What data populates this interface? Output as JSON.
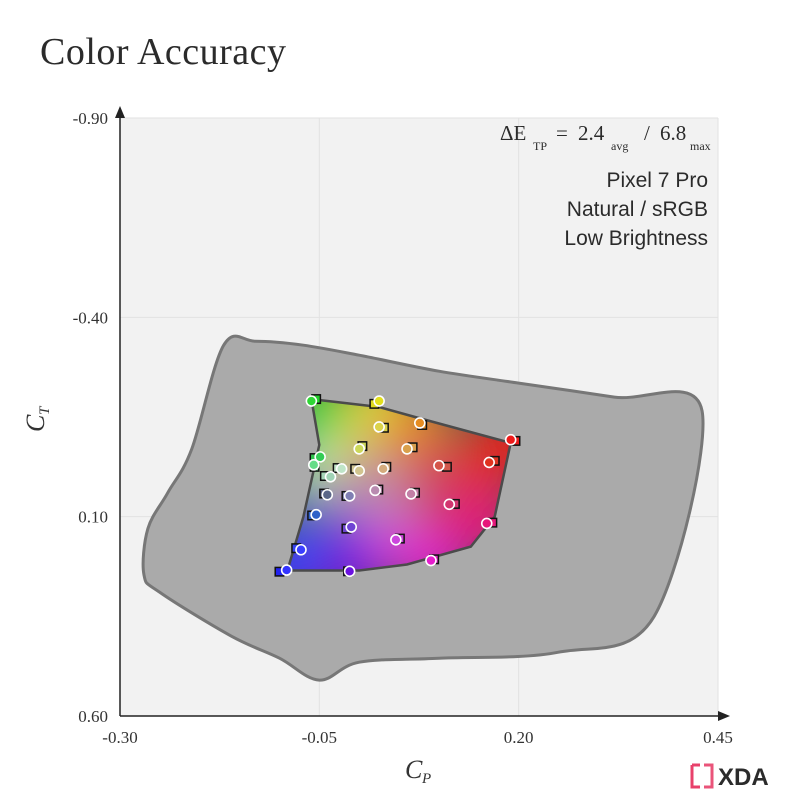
{
  "title": "Color Accuracy",
  "metric": {
    "symbol": "ΔE",
    "symbol_sub": "TP",
    "avg_value": "2.4",
    "avg_sub": "avg",
    "max_value": "6.8",
    "max_sub": "max",
    "line": "= 2.4 / 6.8"
  },
  "info": {
    "device": "Pixel 7 Pro",
    "mode": "Natural / sRGB",
    "brightness": "Low Brightness"
  },
  "logo_text": "XDA",
  "colors": {
    "plot_bg": "#f2f2f2",
    "outer_fill": "#aaaaaa",
    "outer_stroke": "#777777",
    "inner_stroke": "#555555",
    "grid": "#e2e2e2",
    "logo_accent": "#e8416b",
    "logo_text": "#2b2b2b"
  },
  "chart_data": {
    "type": "scatter",
    "title": "Color Accuracy",
    "xlabel": "C",
    "xlabel_sub": "P",
    "ylabel": "C",
    "ylabel_sub": "T",
    "xlim": [
      -0.3,
      0.45
    ],
    "ylim": [
      -0.9,
      0.6
    ],
    "y_inverted": true,
    "x_ticks": [
      -0.3,
      -0.05,
      0.2,
      0.45
    ],
    "x_tick_labels": [
      "-0.30",
      "-0.05",
      "0.20",
      "0.45"
    ],
    "y_ticks": [
      -0.9,
      -0.4,
      0.1,
      0.6
    ],
    "y_tick_labels": [
      "-0.90",
      "-0.40",
      "0.10",
      "0.60"
    ],
    "grid": true,
    "reference_gamut": [
      [
        -0.17,
        -0.33
      ],
      [
        -0.13,
        -0.34
      ],
      [
        -0.07,
        -0.33
      ],
      [
        0.0,
        -0.305
      ],
      [
        0.1,
        -0.265
      ],
      [
        0.2,
        -0.235
      ],
      [
        0.32,
        -0.2
      ],
      [
        0.43,
        -0.165
      ],
      [
        0.37,
        0.35
      ],
      [
        0.25,
        0.44
      ],
      [
        0.1,
        0.455
      ],
      [
        0.0,
        0.465
      ],
      [
        -0.05,
        0.51
      ],
      [
        -0.1,
        0.455
      ],
      [
        -0.16,
        0.4
      ],
      [
        -0.25,
        0.29
      ],
      [
        -0.27,
        0.245
      ],
      [
        -0.265,
        0.13
      ],
      [
        -0.24,
        0.04
      ],
      [
        -0.21,
        -0.07
      ]
    ],
    "measured_gamut": [
      [
        -0.06,
        -0.195
      ],
      [
        0.025,
        -0.175
      ],
      [
        0.07,
        -0.15
      ],
      [
        0.19,
        -0.085
      ],
      [
        0.17,
        0.1
      ],
      [
        0.14,
        0.175
      ],
      [
        0.06,
        0.22
      ],
      [
        0.0,
        0.235
      ],
      [
        -0.09,
        0.235
      ],
      [
        -0.07,
        0.1
      ],
      [
        -0.05,
        -0.08
      ]
    ],
    "series": [
      {
        "name": "target",
        "points": [
          [
            -0.091,
            0.234,
            "#3333ff"
          ],
          [
            -0.073,
            0.183,
            "#3b3fff"
          ],
          [
            -0.054,
            0.095,
            "#2f62c8"
          ],
          [
            -0.049,
            -0.05,
            "#33cc55"
          ],
          [
            -0.06,
            -0.19,
            "#2fd635"
          ],
          [
            -0.057,
            -0.03,
            "#66dd88"
          ],
          [
            -0.04,
            0.045,
            "#5a6688"
          ],
          [
            -0.036,
            0.0,
            "#a0d3b5"
          ],
          [
            -0.022,
            -0.02,
            "#bfe5c8"
          ],
          [
            -0.012,
            0.048,
            "#7f7fb3"
          ],
          [
            -0.01,
            0.126,
            "#6f44d4"
          ],
          [
            -0.012,
            0.237,
            "#6b11e0"
          ],
          [
            0.0,
            -0.015,
            "#d1c58f"
          ],
          [
            0.0,
            -0.07,
            "#ccd85a"
          ],
          [
            0.025,
            -0.19,
            "#e2df1c"
          ],
          [
            0.025,
            -0.125,
            "#dbd24a"
          ],
          [
            0.03,
            -0.02,
            "#d4ab7d"
          ],
          [
            0.02,
            0.034,
            "#b98bb0"
          ],
          [
            0.046,
            0.158,
            "#cc44dd"
          ],
          [
            0.06,
            -0.07,
            "#d9a04c"
          ],
          [
            0.065,
            0.043,
            "#c27fa6"
          ],
          [
            0.076,
            -0.135,
            "#e68c21"
          ],
          [
            0.09,
            0.21,
            "#e51ccc"
          ],
          [
            0.1,
            -0.028,
            "#d4564a"
          ],
          [
            0.113,
            0.069,
            "#d2356f"
          ],
          [
            0.163,
            -0.036,
            "#e0331f"
          ],
          [
            0.19,
            -0.093,
            "#ee1a1a"
          ],
          [
            0.16,
            0.117,
            "#e7167a"
          ]
        ]
      },
      {
        "name": "measured",
        "points": [
          [
            -0.1,
            0.238,
            "#2222ee"
          ],
          [
            -0.079,
            0.179,
            "#3542f2"
          ],
          [
            -0.059,
            0.097,
            "#2f61c8"
          ],
          [
            -0.056,
            -0.047,
            "#2fc44d"
          ],
          [
            -0.054,
            -0.195,
            "#22cc2a"
          ],
          [
            -0.056,
            -0.025,
            "#5bd07f"
          ],
          [
            -0.044,
            0.042,
            "#5c6489"
          ],
          [
            -0.043,
            -0.002,
            "#a5d4b7"
          ],
          [
            -0.027,
            -0.022,
            "#c0e2c6"
          ],
          [
            -0.016,
            0.048,
            "#8080b0"
          ],
          [
            -0.016,
            0.13,
            "#6d46cc"
          ],
          [
            -0.014,
            0.237,
            "#6a16d6"
          ],
          [
            -0.005,
            -0.02,
            "#d0c695"
          ],
          [
            0.004,
            -0.077,
            "#c9d55c"
          ],
          [
            0.019,
            -0.183,
            "#ddd81f"
          ],
          [
            0.031,
            -0.123,
            "#d8cf48"
          ],
          [
            0.034,
            -0.025,
            "#d3ac7e"
          ],
          [
            0.024,
            0.032,
            "#bb8cb1"
          ],
          [
            0.051,
            0.155,
            "#c944d9"
          ],
          [
            0.067,
            -0.074,
            "#d8a04f"
          ],
          [
            0.07,
            0.04,
            "#c27fa8"
          ],
          [
            0.079,
            -0.13,
            "#e38a23"
          ],
          [
            0.094,
            0.207,
            "#e020c7"
          ],
          [
            0.11,
            -0.025,
            "#d3584c"
          ],
          [
            0.12,
            0.068,
            "#d23771"
          ],
          [
            0.17,
            -0.04,
            "#de3522"
          ],
          [
            0.196,
            -0.09,
            "#ec1b1b"
          ],
          [
            0.167,
            0.115,
            "#e5197b"
          ]
        ]
      }
    ]
  }
}
